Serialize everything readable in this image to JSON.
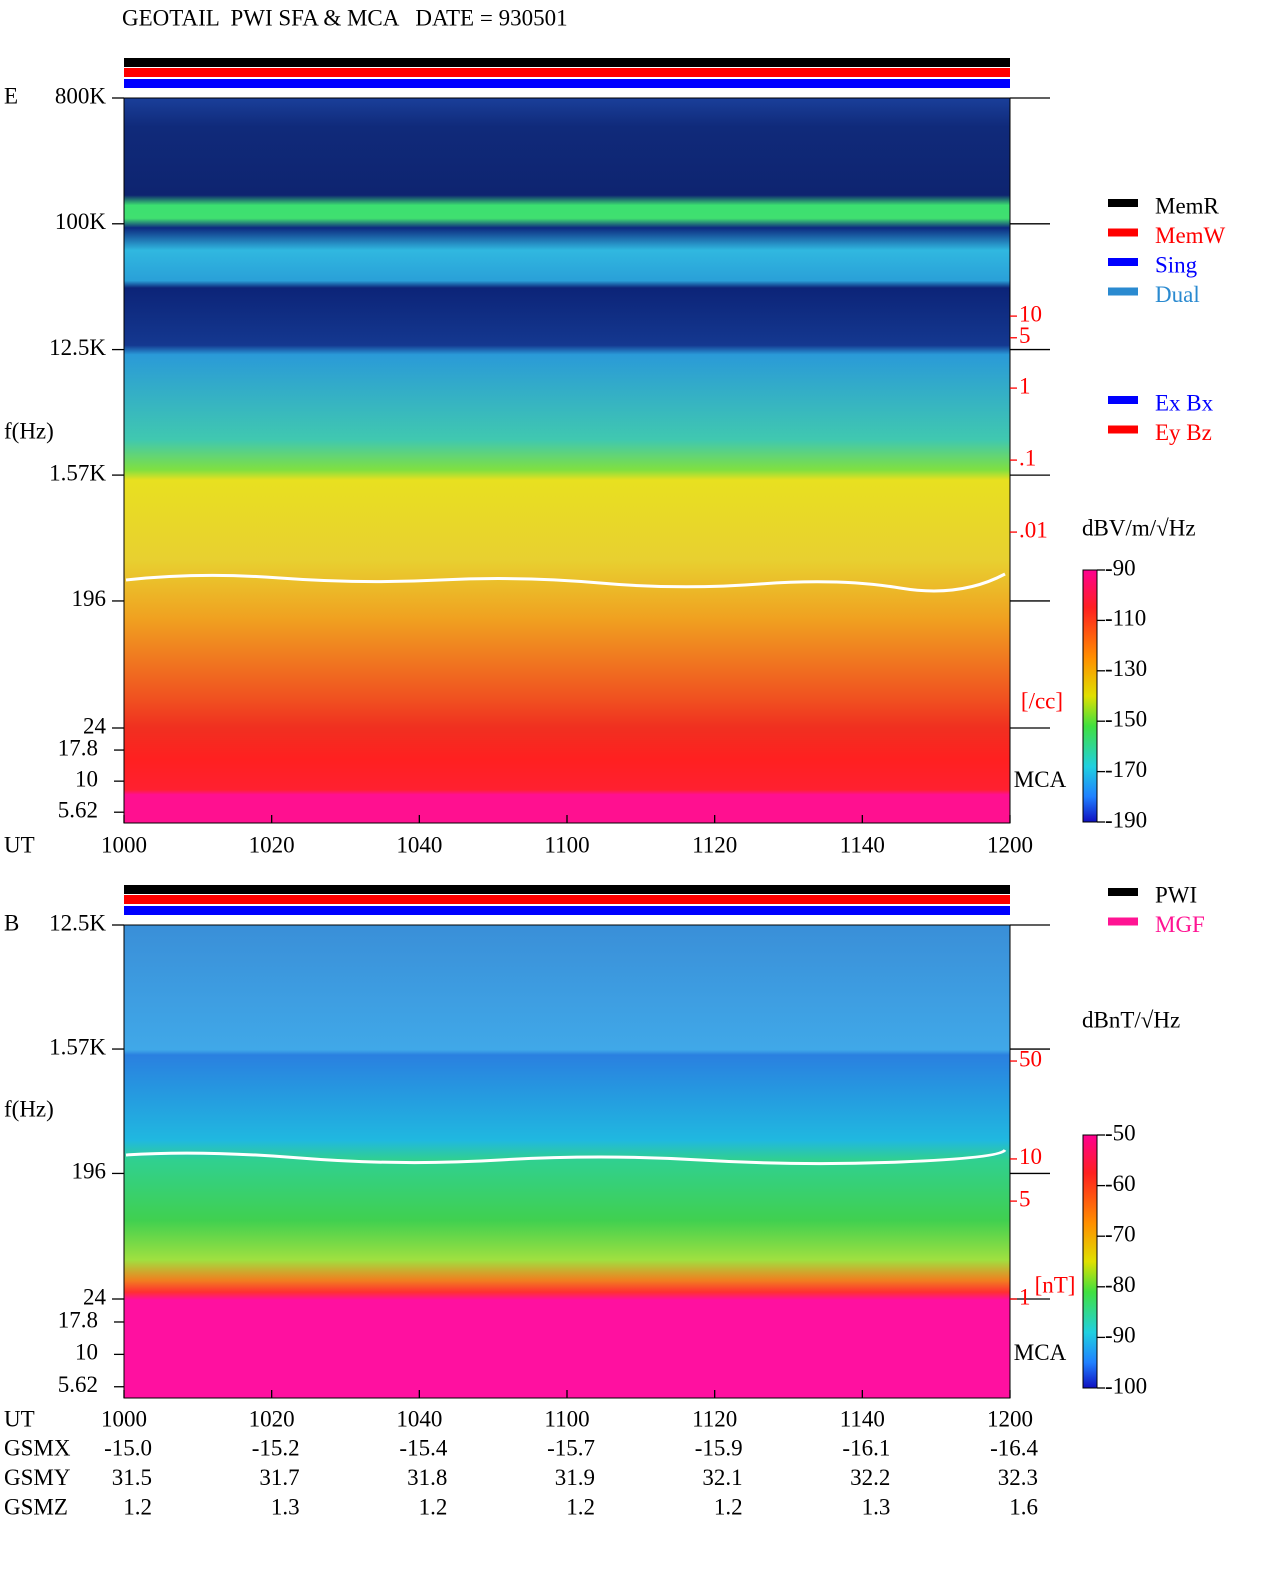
{
  "title": "GEOTAIL  PWI SFA & MCA   DATE = 930501",
  "chart_data": [
    {
      "type": "spectrogram",
      "panel_label": "E",
      "ylabel": "f(Hz)",
      "xlabel": "UT",
      "x_labels": [
        "1000",
        "1020",
        "1040",
        "1100",
        "1120",
        "1140",
        "1200"
      ],
      "yscale": "log",
      "ylim": [
        24,
        800000
      ],
      "yticks": [
        {
          "value": 800000,
          "label": "800K"
        },
        {
          "value": 100000,
          "label": "100K"
        },
        {
          "value": 12500,
          "label": "12.5K"
        },
        {
          "value": 1570,
          "label": "1.57K"
        },
        196,
        24
      ],
      "mca_label": "MCA",
      "mca_ylim": [
        4.6,
        26.8
      ],
      "mca_yticks": [
        17.8,
        10,
        5.62
      ],
      "aux_label": "[/cc]",
      "aux_color": "#ff0000",
      "aux_ylim": [
        1.9e-05,
        10700
      ],
      "aux_yticks": [
        10,
        5,
        1,
        {
          "value": 0.1,
          "label": ".1"
        },
        {
          "value": 0.01,
          "label": ".01"
        }
      ],
      "colorbar_label": "dBV/m/√Hz",
      "clim": [
        -190,
        -90
      ],
      "cticks": [
        -90,
        -110,
        -130,
        -150,
        -170,
        -190
      ],
      "legends": [
        [
          {
            "name": "MemR",
            "color": "#000000"
          },
          {
            "name": "MemW",
            "color": "#ff0000"
          },
          {
            "name": "Sing",
            "color": "#0000ff"
          },
          {
            "name": "Dual",
            "color": "#2a8ad0"
          }
        ],
        [
          {
            "name": "Ex Bx",
            "color": "#0000ff"
          },
          {
            "name": "Ey Bz",
            "color": "#ff0000"
          }
        ]
      ]
    },
    {
      "type": "spectrogram",
      "panel_label": "B",
      "ylabel": "f(Hz)",
      "xlabel": "UT",
      "x_labels": [
        "1000",
        "1020",
        "1040",
        "1100",
        "1120",
        "1140",
        "1200"
      ],
      "yscale": "log",
      "ylim": [
        24,
        12500
      ],
      "yticks": [
        {
          "value": 12500,
          "label": "12.5K"
        },
        {
          "value": 1570,
          "label": "1.57K"
        },
        196,
        24
      ],
      "mca_label": "MCA",
      "mca_ylim": [
        4.6,
        26.8
      ],
      "mca_yticks": [
        17.8,
        10,
        5.62
      ],
      "aux_label": "[nT]",
      "aux_color": "#ff0000",
      "aux_ylim": [
        1,
        468
      ],
      "aux_yticks": [
        50,
        10,
        5,
        1
      ],
      "colorbar_label": "dBnT/√Hz",
      "clim": [
        -100,
        -50
      ],
      "cticks": [
        -50,
        -60,
        -70,
        -80,
        -90,
        -100
      ],
      "legends": [
        [
          {
            "name": "PWI",
            "color": "#000000"
          },
          {
            "name": "MGF",
            "color": "#ff1493"
          }
        ]
      ]
    }
  ],
  "orbit": [
    {
      "label": "GSMX",
      "values": [
        {
          "value": -15,
          "label": "-15.0"
        },
        -15.2,
        -15.4,
        -15.7,
        -15.9,
        -16.1,
        -16.4
      ]
    },
    {
      "label": "GSMY",
      "values": [
        31.5,
        31.7,
        31.8,
        31.9,
        32.1,
        32.2,
        32.3
      ]
    },
    {
      "label": "GSMZ",
      "values": [
        1.2,
        1.3,
        1.2,
        1.2,
        1.2,
        1.3,
        1.6
      ]
    }
  ]
}
